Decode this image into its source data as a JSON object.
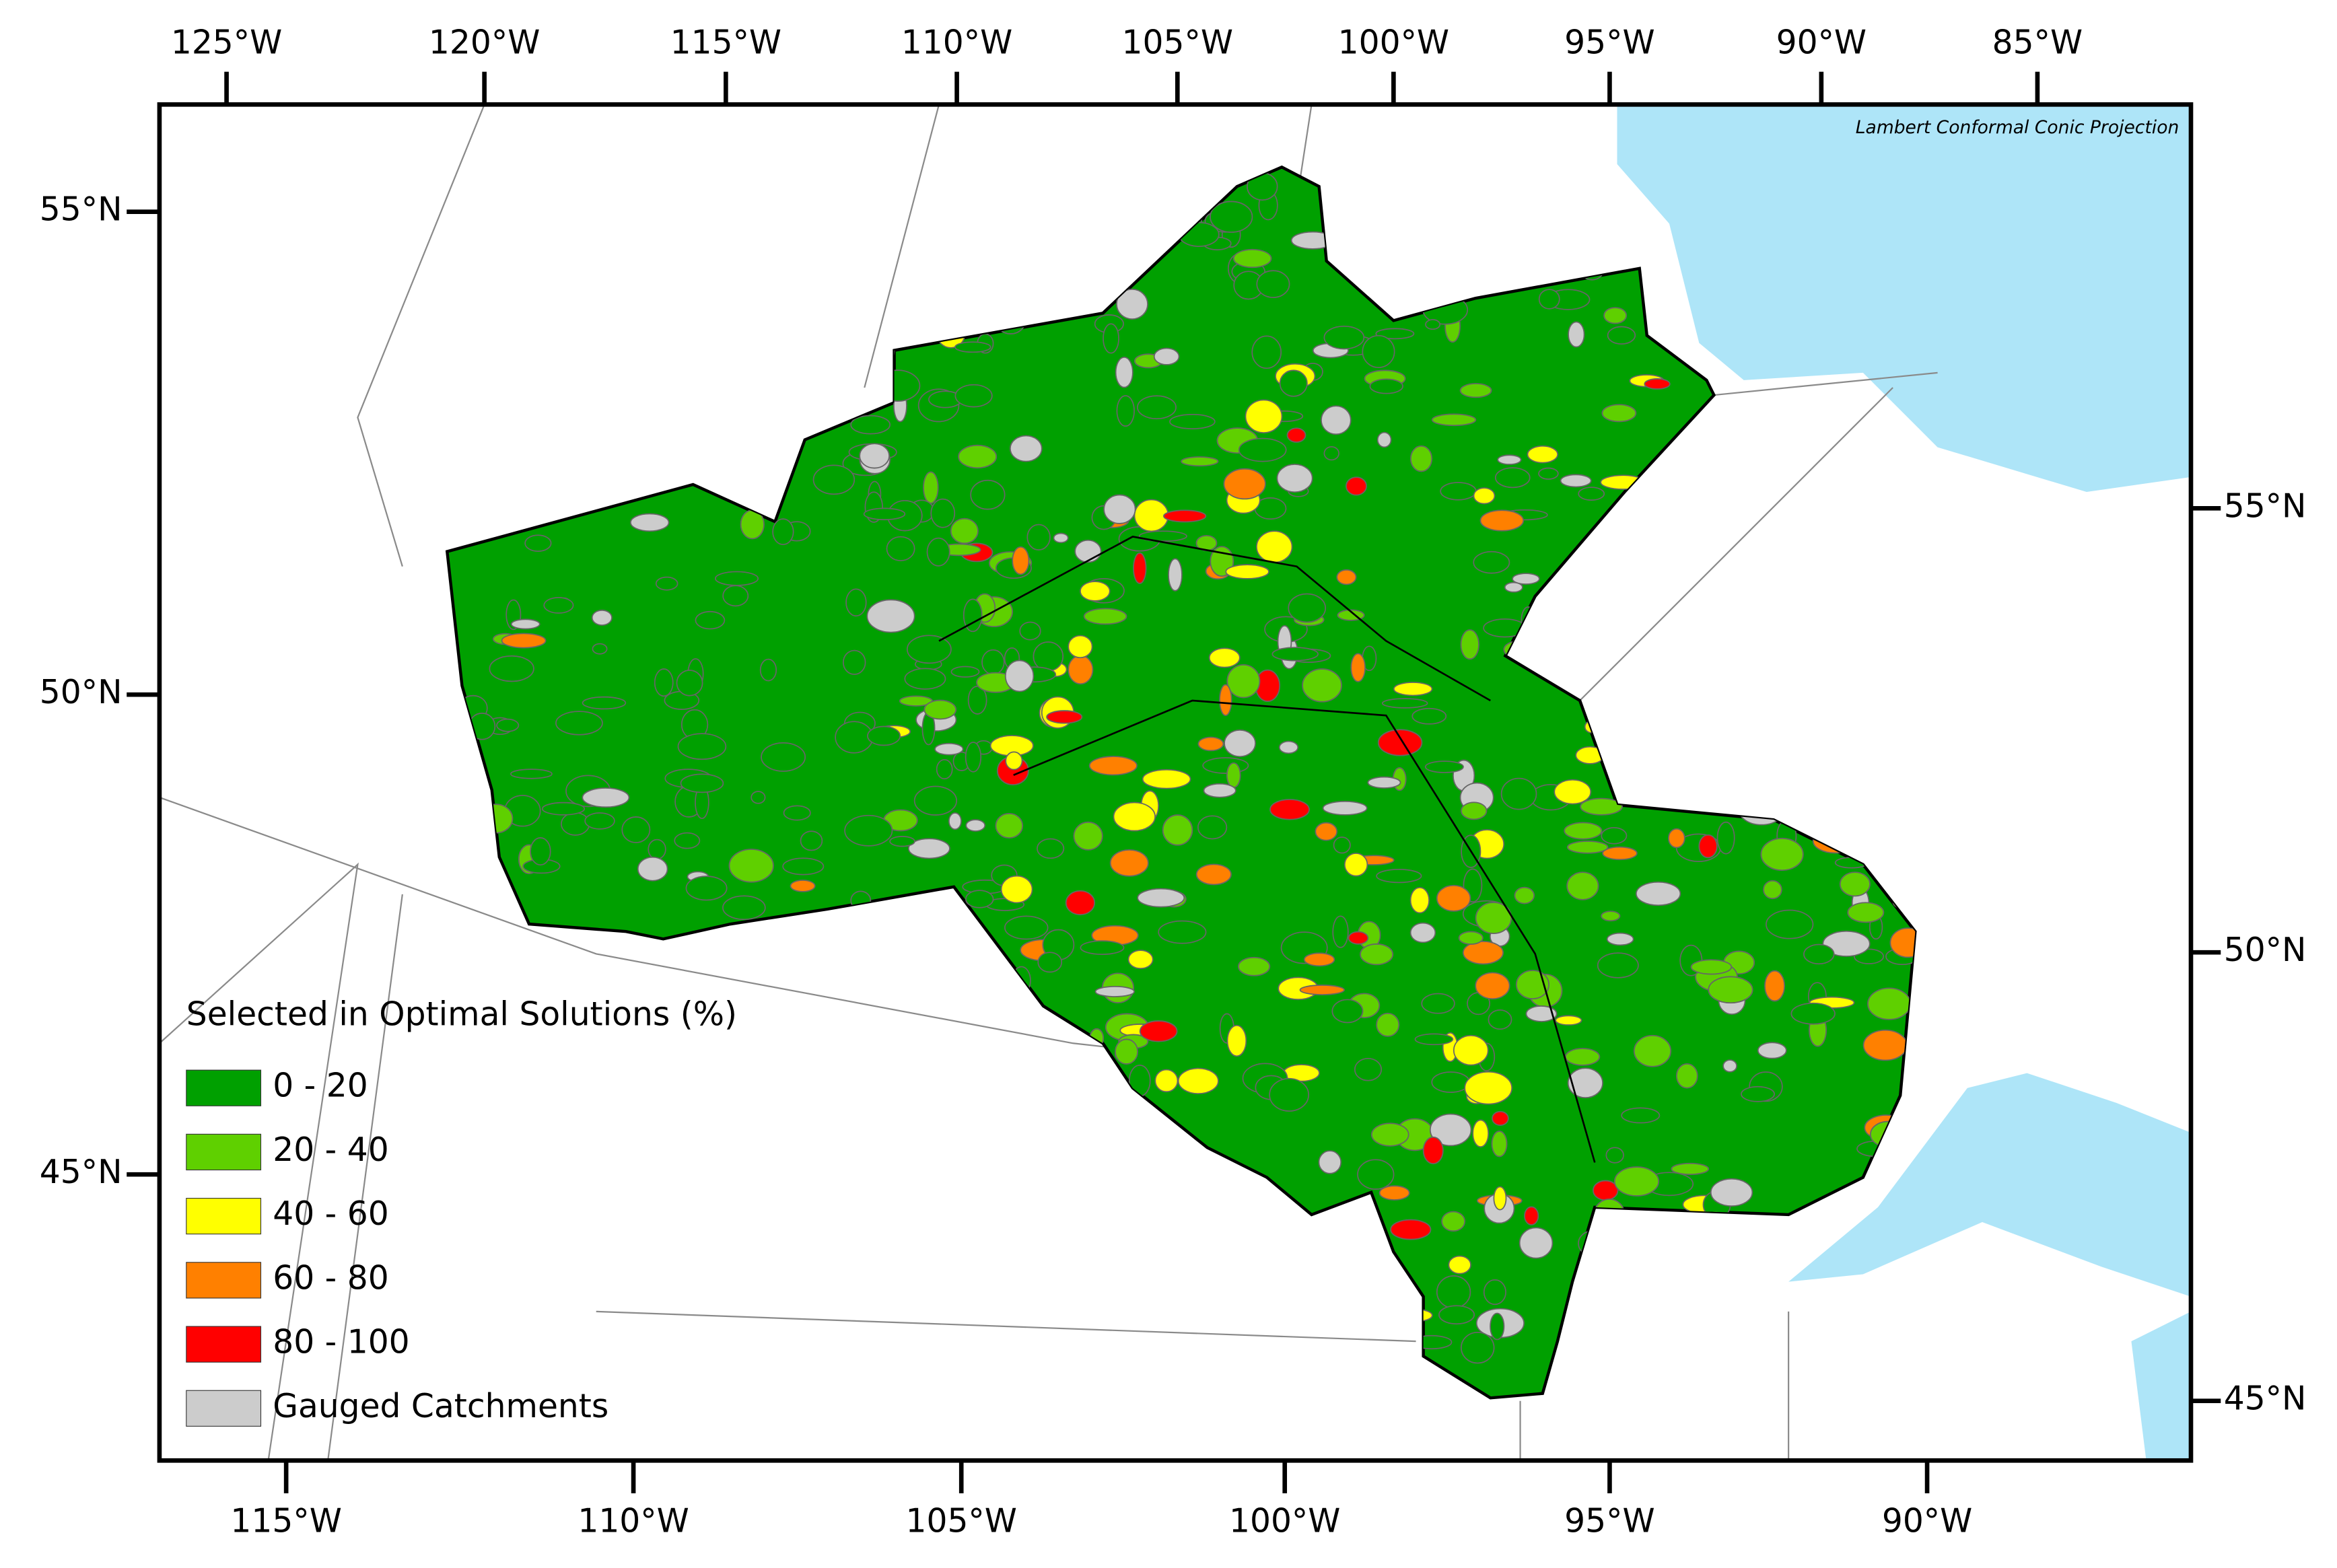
{
  "map": {
    "projection_note": "Lambert Conformal Conic Projection",
    "top_ticks": [
      "125°W",
      "120°W",
      "115°W",
      "110°W",
      "105°W",
      "100°W",
      "95°W",
      "90°W",
      "85°W"
    ],
    "bottom_ticks": [
      "115°W",
      "110°W",
      "105°W",
      "100°W",
      "95°W",
      "90°W"
    ],
    "left_ticks": [
      "55°N",
      "50°N",
      "45°N"
    ],
    "right_ticks": [
      "55°N",
      "50°N",
      "45°N"
    ],
    "legend": {
      "title": "Selected in Optimal Solutions (%)",
      "items": [
        {
          "label": "0 - 20",
          "color": "#00a000"
        },
        {
          "label": "20 - 40",
          "color": "#5fd000"
        },
        {
          "label": "40 - 60",
          "color": "#ffff00"
        },
        {
          "label": "60 - 80",
          "color": "#ff8000"
        },
        {
          "label": "80 - 100",
          "color": "#ff0000"
        },
        {
          "label": "Gauged Catchments",
          "color": "#cccccc"
        }
      ]
    }
  }
}
